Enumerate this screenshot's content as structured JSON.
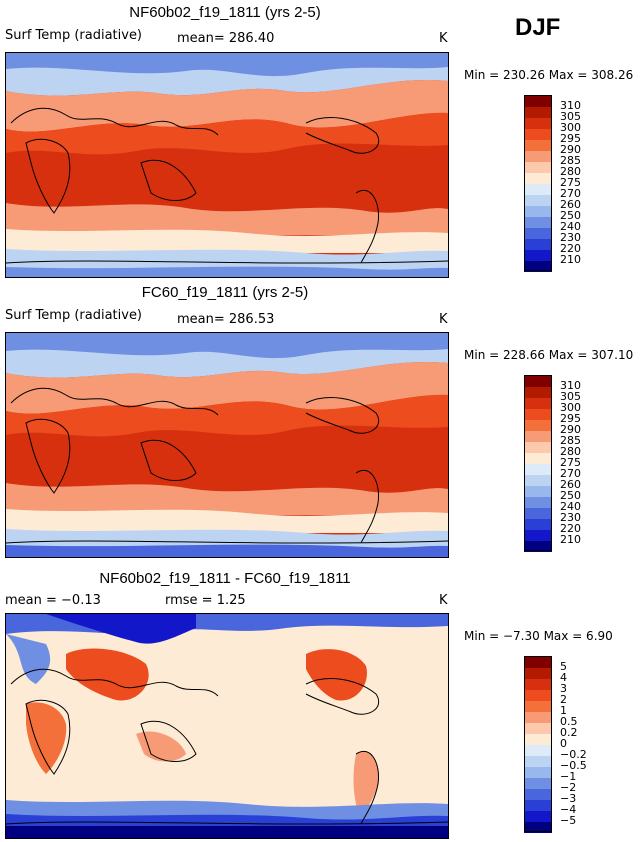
{
  "season": "DJF",
  "units": "K",
  "panels": [
    {
      "id": "p1",
      "title": "NF60b02_f19_1811 (yrs 2-5)",
      "left_label": "Surf Temp (radiative)",
      "mid_label": "mean= 286.40",
      "units": "K",
      "min_max": "Min = 230.26 Max = 308.26"
    },
    {
      "id": "p2",
      "title": "FC60_f19_1811 (yrs 2-5)",
      "left_label": "Surf Temp (radiative)",
      "mid_label": "mean= 286.53",
      "units": "K",
      "min_max": "Min = 228.66 Max = 307.10"
    },
    {
      "id": "p3",
      "title": "NF60b02_f19_1811 - FC60_f19_1811",
      "left_label": "mean =  −0.13",
      "mid_label": "rmse =   1.25",
      "units": "K",
      "min_max": "Min = −7.30 Max =   6.90"
    }
  ],
  "chart_data": [
    {
      "type": "heatmap",
      "title": "NF60b02_f19_1811 (yrs 2-5)",
      "variable": "Surf Temp (radiative)",
      "mean": 286.4,
      "min": 230.26,
      "max": 308.26,
      "units": "K",
      "legend_levels": [
        "310",
        "305",
        "300",
        "295",
        "290",
        "285",
        "280",
        "275",
        "270",
        "260",
        "250",
        "240",
        "230",
        "220",
        "210"
      ]
    },
    {
      "type": "heatmap",
      "title": "FC60_f19_1811 (yrs 2-5)",
      "variable": "Surf Temp (radiative)",
      "mean": 286.53,
      "min": 228.66,
      "max": 307.1,
      "units": "K",
      "legend_levels": [
        "310",
        "305",
        "300",
        "295",
        "290",
        "285",
        "280",
        "275",
        "270",
        "260",
        "250",
        "240",
        "230",
        "220",
        "210"
      ]
    },
    {
      "type": "heatmap",
      "title": "NF60b02_f19_1811 - FC60_f19_1811",
      "mean": -0.13,
      "rmse": 1.25,
      "min": -7.3,
      "max": 6.9,
      "units": "K",
      "legend_levels": [
        "5",
        "4",
        "3",
        "2",
        "1",
        "0.5",
        "0.2",
        "0",
        "−0.2",
        "−0.5",
        "−1",
        "−2",
        "−3",
        "−4",
        "−5"
      ]
    }
  ],
  "palette": [
    "#800000",
    "#b31b00",
    "#d7300f",
    "#ec4c1e",
    "#f4703b",
    "#f69b76",
    "#fcc9ac",
    "#fdebd5",
    "#ddeaf8",
    "#bcd3f2",
    "#98b7ec",
    "#6f8fe3",
    "#4a66dc",
    "#2a3fd6",
    "#1218c9",
    "#000080"
  ],
  "map_colors": {
    "ocean_warm": "#d7300f",
    "coast": "#000000",
    "diff_neutral": "#fdebd5"
  }
}
